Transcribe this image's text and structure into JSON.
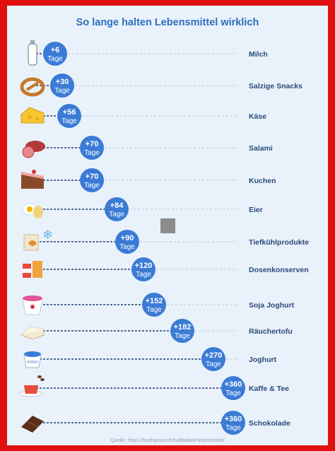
{
  "chart_data": {
    "type": "bar",
    "title": "So lange halten Lebensmittel wirklich",
    "unit": "Tage",
    "categories": [
      "Milch",
      "Salzige Snacks",
      "Käse",
      "Salami",
      "Kuchen",
      "Eier",
      "Tiefkühlprodukte",
      "Dosenkonserven",
      "Soja Joghurt",
      "Räuchertofu",
      "Joghurt",
      "Kaffe & Tee",
      "Schokolade"
    ],
    "value_labels": [
      "+6",
      "+30",
      "+56",
      "+70",
      "+70",
      "+84",
      "+90",
      "+120",
      "+152",
      "+182",
      "+270",
      "+360",
      "+360"
    ],
    "values": [
      6,
      30,
      56,
      70,
      70,
      84,
      90,
      120,
      152,
      182,
      270,
      360,
      360
    ],
    "icons": [
      "milk-bottle-icon",
      "pretzel-icon",
      "cheese-icon",
      "salami-icon",
      "cake-icon",
      "egg-icon",
      "frozen-food-icon",
      "canned-food-icon",
      "soy-yogurt-icon",
      "smoked-tofu-icon",
      "yogurt-icon",
      "coffee-tea-icon",
      "chocolate-icon"
    ],
    "xlim": [
      0,
      360
    ],
    "colors": {
      "bubble": "#3a7bd5",
      "line": "#1f3f6e",
      "label": "#2a4a78",
      "title": "#2e6fbf"
    },
    "source": "Quelle: https://foodsprout.ch/haltbarkeit-lebensmittel"
  }
}
